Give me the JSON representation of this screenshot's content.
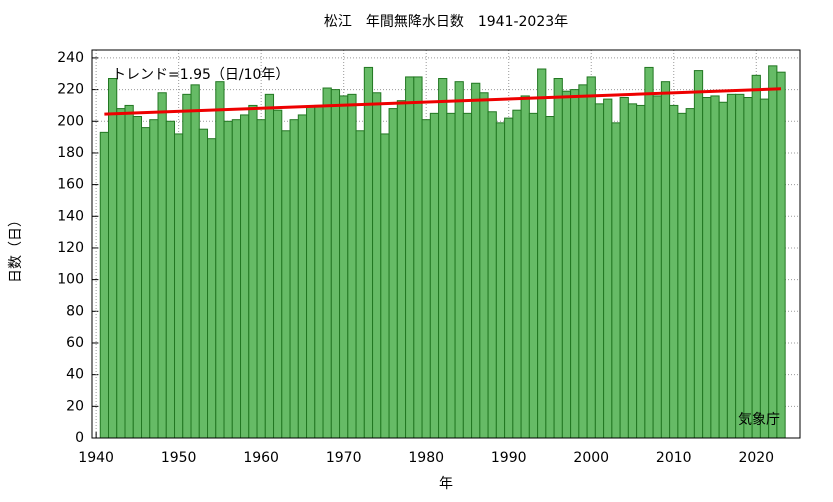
{
  "chart_data": {
    "type": "bar",
    "title": "松江　年間無降水日数　1941-2023年",
    "annotation": "トレンド=1.95（日/10年）",
    "source": "気象庁",
    "xlabel": "年",
    "ylabel": "日数（日）",
    "x": [
      1941,
      1942,
      1943,
      1944,
      1945,
      1946,
      1947,
      1948,
      1949,
      1950,
      1951,
      1952,
      1953,
      1954,
      1955,
      1956,
      1957,
      1958,
      1959,
      1960,
      1961,
      1962,
      1963,
      1964,
      1965,
      1966,
      1967,
      1968,
      1969,
      1970,
      1971,
      1972,
      1973,
      1974,
      1975,
      1976,
      1977,
      1978,
      1979,
      1980,
      1981,
      1982,
      1983,
      1984,
      1985,
      1986,
      1987,
      1988,
      1989,
      1990,
      1991,
      1992,
      1993,
      1994,
      1995,
      1996,
      1997,
      1998,
      1999,
      2000,
      2001,
      2002,
      2003,
      2004,
      2005,
      2006,
      2007,
      2008,
      2009,
      2010,
      2011,
      2012,
      2013,
      2014,
      2015,
      2016,
      2017,
      2018,
      2019,
      2020,
      2021,
      2022,
      2023
    ],
    "values": [
      193,
      227,
      208,
      210,
      203,
      196,
      201,
      218,
      200,
      192,
      217,
      223,
      195,
      189,
      225,
      200,
      201,
      204,
      210,
      201,
      217,
      207,
      194,
      201,
      204,
      209,
      210,
      221,
      220,
      216,
      217,
      194,
      234,
      218,
      192,
      208,
      213,
      228,
      228,
      201,
      205,
      227,
      205,
      225,
      205,
      224,
      218,
      206,
      199,
      202,
      207,
      216,
      205,
      233,
      203,
      227,
      219,
      220,
      223,
      228,
      211,
      214,
      199,
      215,
      211,
      210,
      234,
      216,
      225,
      210,
      205,
      208,
      232,
      215,
      216,
      212,
      217,
      217,
      215,
      229,
      214,
      235,
      231
    ],
    "color": "#66bb66",
    "edgecolor": "#227722",
    "trend": {
      "x": [
        1941,
        2023
      ],
      "values": [
        204.5,
        220.5
      ],
      "color": "#ee0000"
    },
    "xlim": [
      1939.5,
      2025.3
    ],
    "xticks": [
      1940,
      1950,
      1960,
      1970,
      1980,
      1990,
      2000,
      2010,
      2020
    ],
    "ylim": [
      0,
      245
    ],
    "yticks": [
      0,
      20,
      40,
      60,
      80,
      100,
      120,
      140,
      160,
      180,
      200,
      220,
      240
    ],
    "grid": true
  }
}
